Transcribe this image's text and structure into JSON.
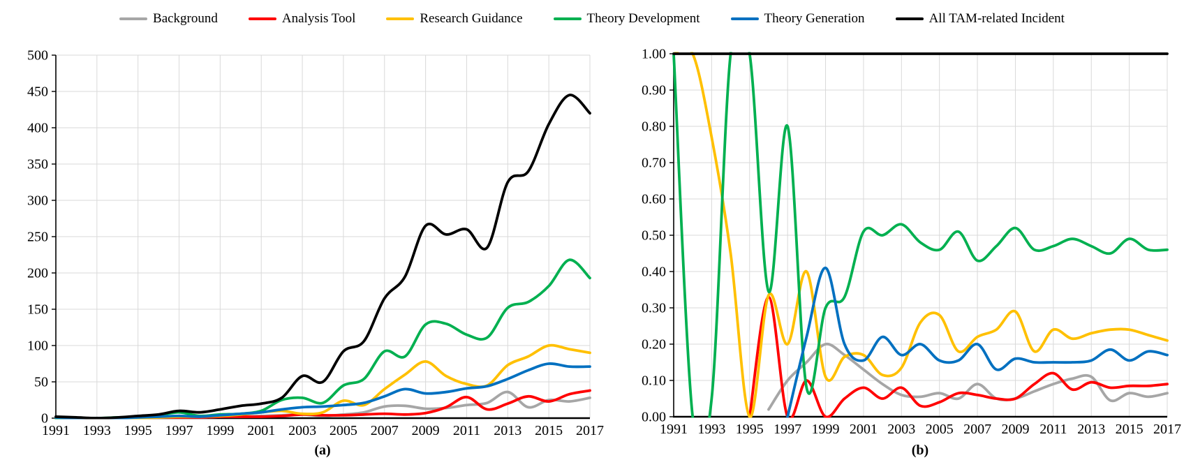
{
  "page": {
    "background": "#ffffff",
    "grid_color": "#d9d9d9",
    "axis_color": "#000000"
  },
  "legend": {
    "items": [
      {
        "label": "Background",
        "color": "#A6A6A6"
      },
      {
        "label": "Analysis Tool",
        "color": "#FF0000"
      },
      {
        "label": "Research Guidance",
        "color": "#FFC000"
      },
      {
        "label": "Theory Development",
        "color": "#00B050"
      },
      {
        "label": "Theory Generation",
        "color": "#0070C0"
      },
      {
        "label": "All TAM-related Incident",
        "color": "#000000"
      }
    ]
  },
  "captions": {
    "left": "(a)",
    "right": "(b)"
  },
  "chart_data": [
    {
      "type": "line",
      "id": "a",
      "caption": "(a)",
      "x": [
        1991,
        1992,
        1993,
        1994,
        1995,
        1996,
        1997,
        1998,
        1999,
        2000,
        2001,
        2002,
        2003,
        2004,
        2005,
        2006,
        2007,
        2008,
        2009,
        2010,
        2011,
        2012,
        2013,
        2014,
        2015,
        2016,
        2017
      ],
      "x_tick_years": [
        1991,
        1993,
        1995,
        1997,
        1999,
        2001,
        2003,
        2005,
        2007,
        2009,
        2011,
        2013,
        2015,
        2017
      ],
      "x_tick_labels": [
        "1991",
        "1993",
        "1995",
        "1997",
        "1999",
        "2001",
        "2003",
        "2005",
        "2007",
        "2009",
        "2011",
        "2013",
        "2015",
        "2017"
      ],
      "ylim": [
        0,
        500
      ],
      "y_ticks": [
        0,
        50,
        100,
        150,
        200,
        250,
        300,
        350,
        400,
        450,
        500
      ],
      "y_tick_labels": [
        "0",
        "50",
        "100",
        "150",
        "200",
        "250",
        "300",
        "350",
        "400",
        "450",
        "500"
      ],
      "grid": true,
      "legend_position": "top",
      "series": [
        {
          "name": "Background",
          "color": "#A6A6A6",
          "values": [
            1,
            0,
            0,
            0,
            0,
            1,
            1,
            1,
            2,
            2,
            3,
            4,
            5,
            3,
            5,
            8,
            16,
            17,
            13,
            14,
            18,
            21,
            36,
            15,
            25,
            23,
            28
          ]
        },
        {
          "name": "Analysis Tool",
          "color": "#FF0000",
          "values": [
            0,
            0,
            0,
            0,
            0,
            1,
            1,
            1,
            2,
            2,
            2,
            3,
            5,
            4,
            4,
            5,
            6,
            5,
            7,
            15,
            29,
            12,
            20,
            30,
            23,
            33,
            38
          ]
        },
        {
          "name": "Research Guidance",
          "color": "#FFC000",
          "values": [
            0,
            0,
            0,
            0,
            0,
            1,
            2,
            2,
            3,
            5,
            8,
            10,
            6,
            8,
            24,
            18,
            40,
            60,
            78,
            58,
            47,
            45,
            73,
            85,
            100,
            95,
            90
          ]
        },
        {
          "name": "Theory Development",
          "color": "#00B050",
          "values": [
            0,
            0,
            0,
            1,
            2,
            4,
            8,
            3,
            5,
            6,
            10,
            25,
            28,
            21,
            45,
            54,
            92,
            85,
            129,
            130,
            115,
            111,
            152,
            160,
            182,
            218,
            193
          ]
        },
        {
          "name": "Theory Generation",
          "color": "#0070C0",
          "values": [
            1,
            0,
            0,
            0,
            1,
            2,
            3,
            2,
            4,
            6,
            8,
            12,
            15,
            16,
            18,
            21,
            30,
            40,
            34,
            36,
            41,
            44,
            54,
            66,
            75,
            71,
            71
          ]
        },
        {
          "name": "All TAM-related Incident",
          "color": "#000000",
          "values": [
            2,
            1,
            0,
            1,
            3,
            5,
            10,
            8,
            12,
            17,
            20,
            28,
            58,
            50,
            92,
            106,
            165,
            195,
            265,
            253,
            260,
            235,
            325,
            340,
            405,
            445,
            420
          ]
        }
      ]
    },
    {
      "type": "line",
      "id": "b",
      "caption": "(b)",
      "x": [
        1991,
        1992,
        1993,
        1994,
        1995,
        1996,
        1997,
        1998,
        1999,
        2000,
        2001,
        2002,
        2003,
        2004,
        2005,
        2006,
        2007,
        2008,
        2009,
        2010,
        2011,
        2012,
        2013,
        2014,
        2015,
        2016,
        2017
      ],
      "x_tick_years": [
        1991,
        1993,
        1995,
        1997,
        1999,
        2001,
        2003,
        2005,
        2007,
        2009,
        2011,
        2013,
        2015,
        2017
      ],
      "x_tick_labels": [
        "1991",
        "1993",
        "1995",
        "1997",
        "1999",
        "2001",
        "2003",
        "2005",
        "2007",
        "2009",
        "2011",
        "2013",
        "2015",
        "2017"
      ],
      "ylim": [
        0,
        1
      ],
      "y_ticks": [
        0,
        0.1,
        0.2,
        0.3,
        0.4,
        0.5,
        0.6,
        0.7,
        0.8,
        0.9,
        1.0
      ],
      "y_tick_labels": [
        "0.00",
        "0.10",
        "0.20",
        "0.30",
        "0.40",
        "0.50",
        "0.60",
        "0.70",
        "0.80",
        "0.90",
        "1.00"
      ],
      "grid": true,
      "legend_position": "top",
      "series": [
        {
          "name": "Background",
          "color": "#A6A6A6",
          "values": [
            null,
            null,
            null,
            null,
            null,
            0.02,
            0.1,
            0.15,
            0.2,
            0.17,
            0.13,
            0.09,
            0.06,
            0.055,
            0.065,
            0.05,
            0.09,
            0.05,
            0.05,
            0.07,
            0.09,
            0.105,
            0.11,
            0.045,
            0.065,
            0.055,
            0.065
          ]
        },
        {
          "name": "Analysis Tool",
          "color": "#FF0000",
          "values": [
            null,
            null,
            null,
            null,
            0.0,
            0.33,
            0.0,
            0.1,
            0.0,
            0.05,
            0.08,
            0.05,
            0.08,
            0.03,
            0.04,
            0.065,
            0.06,
            0.05,
            0.05,
            0.09,
            0.12,
            0.075,
            0.095,
            0.08,
            0.085,
            0.085,
            0.09
          ]
        },
        {
          "name": "Research Guidance",
          "color": "#FFC000",
          "values": [
            1.0,
            1.0,
            0.77,
            0.45,
            0.0,
            0.335,
            0.2,
            0.4,
            0.11,
            0.165,
            0.17,
            0.115,
            0.135,
            0.26,
            0.28,
            0.18,
            0.22,
            0.24,
            0.29,
            0.18,
            0.24,
            0.215,
            0.23,
            0.24,
            0.24,
            0.225,
            0.21
          ]
        },
        {
          "name": "Theory Development",
          "color": "#00B050",
          "values": [
            1.0,
            0.0,
            0.05,
            1.0,
            1.0,
            0.345,
            0.8,
            0.08,
            0.3,
            0.33,
            0.51,
            0.5,
            0.53,
            0.48,
            0.46,
            0.51,
            0.43,
            0.47,
            0.52,
            0.46,
            0.47,
            0.49,
            0.47,
            0.45,
            0.49,
            0.46,
            0.46
          ]
        },
        {
          "name": "Theory Generation",
          "color": "#0070C0",
          "values": [
            null,
            null,
            null,
            null,
            null,
            null,
            0.0,
            0.22,
            0.41,
            0.2,
            0.155,
            0.22,
            0.17,
            0.2,
            0.155,
            0.155,
            0.2,
            0.13,
            0.16,
            0.15,
            0.15,
            0.15,
            0.155,
            0.185,
            0.155,
            0.18,
            0.17
          ]
        },
        {
          "name": "All TAM-related Incident",
          "color": "#000000",
          "values": [
            1,
            1,
            1,
            1,
            1,
            1,
            1,
            1,
            1,
            1,
            1,
            1,
            1,
            1,
            1,
            1,
            1,
            1,
            1,
            1,
            1,
            1,
            1,
            1,
            1,
            1,
            1
          ]
        }
      ]
    }
  ]
}
